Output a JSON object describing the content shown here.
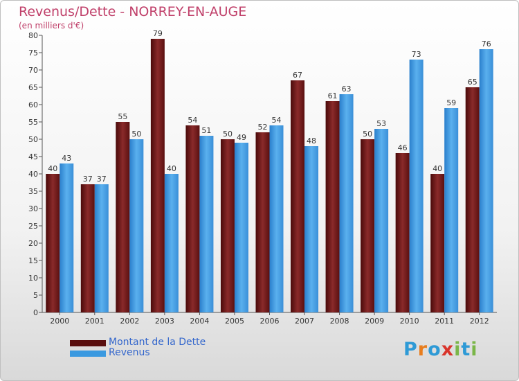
{
  "chart_data": {
    "type": "bar",
    "title": "Revenus/Dette - NORREY-EN-AUGE",
    "subtitle": "(en milliers d'€)",
    "categories": [
      "2000",
      "2001",
      "2002",
      "2003",
      "2004",
      "2005",
      "2006",
      "2007",
      "2008",
      "2009",
      "2010",
      "2011",
      "2012"
    ],
    "series": [
      {
        "name": "Montant de la Dette",
        "color": "#7a1c1c",
        "values": [
          40,
          37,
          55,
          79,
          54,
          50,
          52,
          67,
          61,
          50,
          46,
          40,
          65
        ]
      },
      {
        "name": "Revenus",
        "color": "#3a99e0",
        "values": [
          43,
          37,
          50,
          40,
          51,
          49,
          54,
          48,
          63,
          53,
          73,
          59,
          76
        ]
      }
    ],
    "ylim": [
      0,
      80
    ],
    "yticks": [
      0,
      5,
      10,
      15,
      20,
      25,
      30,
      35,
      40,
      45,
      50,
      55,
      60,
      65,
      70,
      75,
      80
    ],
    "grid": false,
    "legend_position": "bottom-left"
  },
  "logo": {
    "letters": [
      "P",
      "r",
      "o",
      "x",
      "i",
      "t",
      "i"
    ],
    "colors": [
      "#2e9ad6",
      "#e87d1e",
      "#2e9ad6",
      "#d9342b",
      "#7ab648",
      "#2e9ad6",
      "#7ab648"
    ]
  }
}
